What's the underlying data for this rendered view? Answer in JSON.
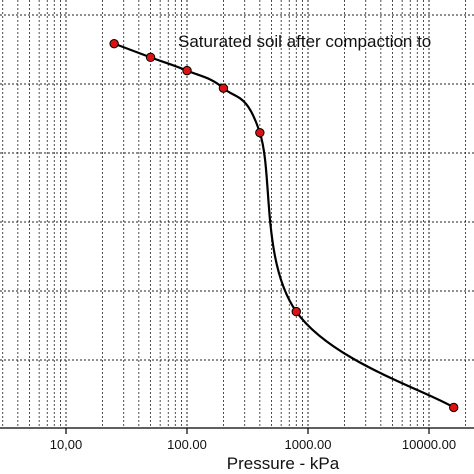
{
  "chart_data": {
    "type": "line",
    "x_scale": "log",
    "xlim": [
      1.6,
      16000
    ],
    "ylim": [
      0,
      1
    ],
    "xlabel": "Pressure - kPa",
    "x_ticks": [
      10,
      100,
      1000,
      10000
    ],
    "x_tick_labels": [
      "10,00",
      "100.00",
      "1000.00",
      "10000.00"
    ],
    "annotation": "Saturated soil after compaction to",
    "grid": true,
    "marker_color": "#dd1111",
    "line_color": "#000000",
    "series": [
      {
        "x": [
          25,
          50,
          100,
          200,
          400,
          800,
          16000
        ],
        "y": [
          0.898,
          0.866,
          0.835,
          0.794,
          0.69,
          0.272,
          0.048
        ]
      }
    ]
  }
}
